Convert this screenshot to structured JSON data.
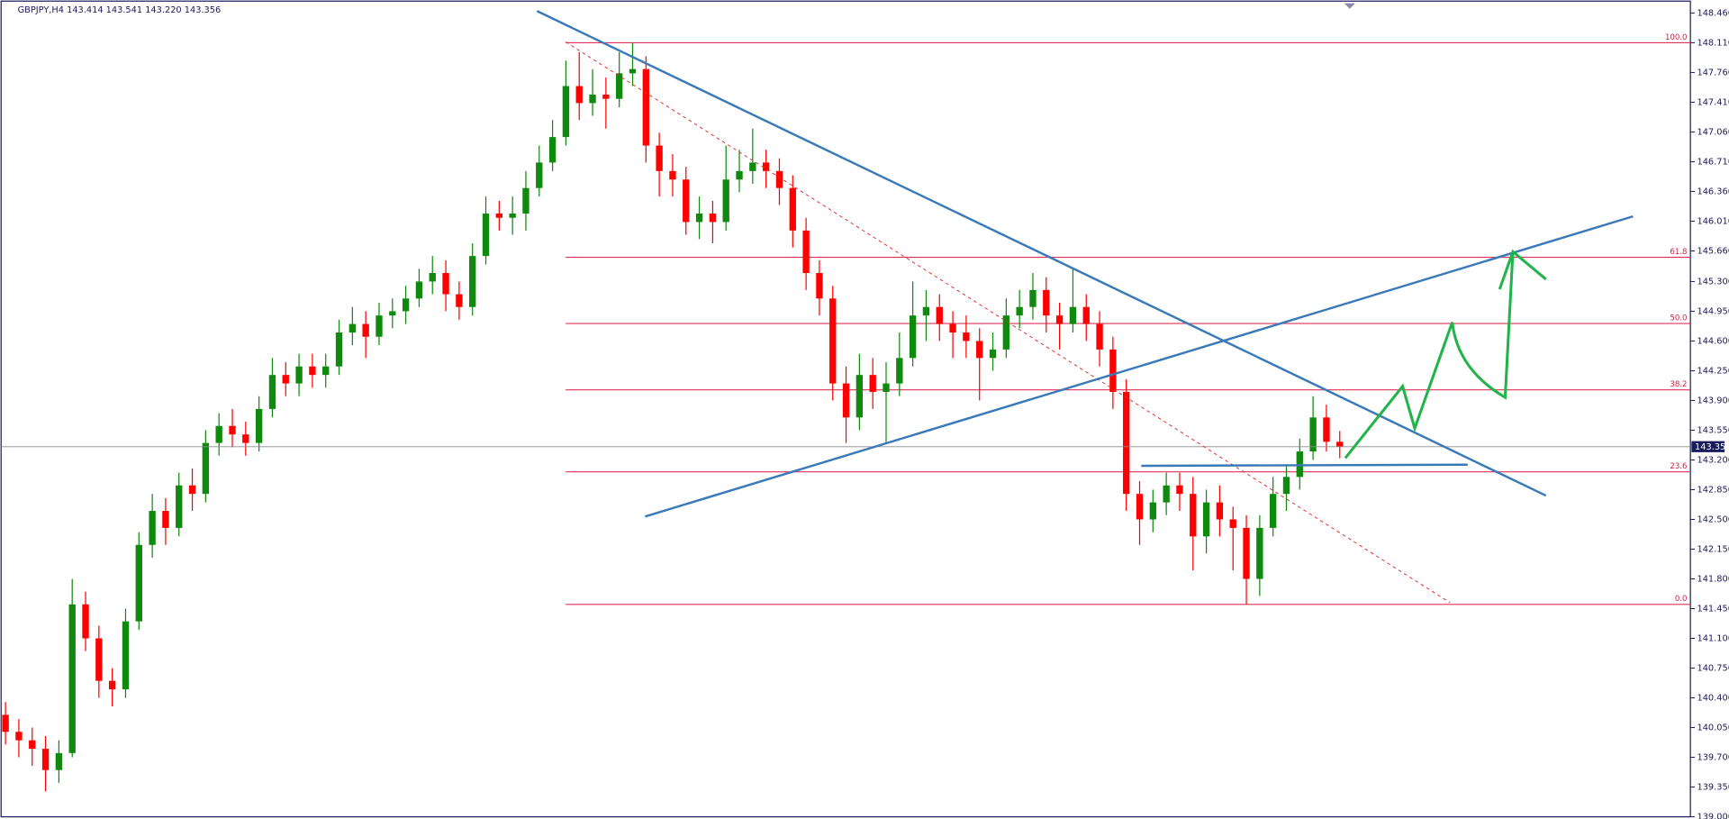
{
  "chart_data": {
    "type": "candlestick",
    "title": "GBPJPY,H4  143.414 143.541 143.220 143.356",
    "up_color": "#0f8a0f",
    "down_color": "#ff0000",
    "ylim": [
      139.0,
      148.6
    ],
    "yticks": [
      {
        "value": 148.46,
        "label": "148.460"
      },
      {
        "value": 148.11,
        "label": "148.110"
      },
      {
        "value": 147.76,
        "label": "147.760"
      },
      {
        "value": 147.41,
        "label": "147.410"
      },
      {
        "value": 147.06,
        "label": "147.060"
      },
      {
        "value": 146.71,
        "label": "146.710"
      },
      {
        "value": 146.36,
        "label": "146.360"
      },
      {
        "value": 146.01,
        "label": "146.010"
      },
      {
        "value": 145.66,
        "label": "145.660"
      },
      {
        "value": 145.3,
        "label": "145.300"
      },
      {
        "value": 144.95,
        "label": "144.950"
      },
      {
        "value": 144.6,
        "label": "144.600"
      },
      {
        "value": 144.25,
        "label": "144.250"
      },
      {
        "value": 143.9,
        "label": "143.900"
      },
      {
        "value": 143.55,
        "label": "143.550"
      },
      {
        "value": 143.2,
        "label": "143.200"
      },
      {
        "value": 142.85,
        "label": "142.850"
      },
      {
        "value": 142.5,
        "label": "142.500"
      },
      {
        "value": 142.15,
        "label": "142.150"
      },
      {
        "value": 141.8,
        "label": "141.800"
      },
      {
        "value": 141.45,
        "label": "141.450"
      },
      {
        "value": 141.1,
        "label": "141.100"
      },
      {
        "value": 140.75,
        "label": "140.750"
      },
      {
        "value": 140.4,
        "label": "140.400"
      },
      {
        "value": 140.05,
        "label": "140.050"
      },
      {
        "value": 139.7,
        "label": "139.700"
      },
      {
        "value": 139.35,
        "label": "139.350"
      },
      {
        "value": 139.0,
        "label": "139.000"
      }
    ],
    "fib_levels": [
      {
        "text": "100.0",
        "price": 148.11
      },
      {
        "text": "61.8",
        "price": 145.585
      },
      {
        "text": "50.0",
        "price": 144.805
      },
      {
        "text": "38.2",
        "price": 144.025
      },
      {
        "text": "23.6",
        "price": 143.06
      },
      {
        "text": "0.0",
        "price": 141.5
      }
    ],
    "open": [
      140.2,
      140.0,
      139.9,
      139.8,
      139.55,
      139.75,
      141.5,
      141.1,
      140.6,
      140.5,
      141.3,
      142.2,
      142.6,
      142.4,
      142.9,
      142.8,
      143.4,
      143.6,
      143.5,
      143.4,
      143.8,
      144.2,
      144.1,
      144.3,
      144.2,
      144.3,
      144.7,
      144.8,
      144.65,
      144.9,
      144.95,
      145.1,
      145.3,
      145.4,
      145.15,
      145.0,
      145.6,
      146.1,
      146.05,
      146.1,
      146.4,
      146.7,
      147.0,
      147.6,
      147.4,
      147.5,
      147.45,
      147.75,
      147.8,
      146.9,
      146.6,
      146.5,
      146.0,
      146.1,
      146.0,
      146.5,
      146.6,
      146.7,
      146.6,
      146.4,
      145.9,
      145.4,
      145.1,
      144.1,
      143.7,
      144.2,
      144.0,
      144.1,
      144.4,
      144.9,
      145.0,
      144.8,
      144.7,
      144.6,
      144.4,
      144.5,
      144.9,
      145.0,
      145.2,
      144.9,
      144.8,
      145.0,
      144.8,
      144.5,
      144.0,
      142.8,
      142.5,
      142.7,
      142.9,
      142.8,
      142.3,
      142.7,
      142.5,
      142.4,
      141.8,
      142.4,
      142.8,
      143.0,
      143.3,
      143.7,
      143.414
    ],
    "high": [
      140.35,
      140.15,
      140.05,
      139.95,
      139.9,
      141.8,
      141.65,
      141.25,
      140.75,
      141.45,
      142.35,
      142.8,
      142.75,
      143.05,
      143.1,
      143.55,
      143.75,
      143.8,
      143.65,
      143.95,
      144.4,
      144.35,
      144.45,
      144.45,
      144.45,
      144.85,
      145.0,
      144.95,
      145.05,
      145.1,
      145.25,
      145.45,
      145.6,
      145.55,
      145.3,
      145.75,
      146.3,
      146.25,
      146.3,
      146.6,
      146.9,
      147.2,
      147.9,
      148.0,
      147.8,
      147.7,
      148.0,
      148.11,
      147.95,
      147.05,
      146.8,
      146.65,
      146.3,
      146.25,
      146.9,
      146.85,
      147.1,
      146.85,
      146.75,
      146.55,
      146.05,
      145.55,
      145.25,
      144.3,
      144.45,
      144.4,
      144.35,
      144.7,
      145.3,
      145.2,
      145.15,
      144.95,
      144.9,
      144.75,
      144.7,
      145.1,
      145.2,
      145.4,
      145.35,
      145.05,
      145.45,
      145.15,
      144.95,
      144.65,
      144.15,
      142.95,
      142.85,
      143.05,
      143.05,
      143.0,
      142.85,
      142.9,
      142.65,
      142.55,
      142.55,
      143.0,
      143.15,
      143.45,
      143.95,
      143.85,
      143.541
    ],
    "low": [
      139.85,
      139.7,
      139.6,
      139.3,
      139.4,
      139.7,
      140.95,
      140.4,
      140.3,
      140.4,
      141.2,
      142.05,
      142.2,
      142.3,
      142.6,
      142.7,
      143.25,
      143.35,
      143.25,
      143.3,
      143.7,
      143.95,
      143.95,
      144.05,
      144.05,
      144.2,
      144.55,
      144.4,
      144.55,
      144.75,
      144.8,
      145.0,
      145.15,
      144.95,
      144.85,
      144.9,
      145.5,
      145.9,
      145.85,
      145.9,
      146.3,
      146.6,
      146.9,
      147.2,
      147.25,
      147.1,
      147.35,
      147.6,
      146.7,
      146.3,
      146.3,
      145.85,
      145.8,
      145.75,
      145.9,
      146.35,
      146.45,
      146.4,
      146.2,
      145.7,
      145.2,
      144.9,
      143.9,
      143.4,
      143.55,
      143.8,
      143.4,
      143.95,
      144.3,
      144.6,
      144.6,
      144.4,
      144.4,
      143.9,
      144.25,
      144.4,
      144.75,
      144.85,
      144.7,
      144.5,
      144.7,
      144.6,
      144.3,
      143.8,
      142.6,
      142.2,
      142.35,
      142.55,
      142.6,
      141.9,
      142.1,
      142.3,
      141.9,
      141.5,
      141.6,
      142.3,
      142.6,
      142.85,
      143.2,
      143.3,
      143.22
    ],
    "close": [
      140.0,
      139.9,
      139.8,
      139.55,
      139.75,
      141.5,
      141.1,
      140.6,
      140.5,
      141.3,
      142.2,
      142.6,
      142.4,
      142.9,
      142.8,
      143.4,
      143.6,
      143.5,
      143.4,
      143.8,
      144.2,
      144.1,
      144.3,
      144.2,
      144.3,
      144.7,
      144.8,
      144.65,
      144.9,
      144.95,
      145.1,
      145.3,
      145.4,
      145.15,
      145.0,
      145.6,
      146.1,
      146.05,
      146.1,
      146.4,
      146.7,
      147.0,
      147.6,
      147.4,
      147.5,
      147.45,
      147.75,
      147.8,
      146.9,
      146.6,
      146.5,
      146.0,
      146.1,
      146.0,
      146.5,
      146.6,
      146.7,
      146.6,
      146.4,
      145.9,
      145.4,
      145.1,
      144.1,
      143.7,
      144.2,
      144.0,
      144.1,
      144.4,
      144.9,
      145.0,
      144.8,
      144.7,
      144.6,
      144.4,
      144.5,
      144.9,
      145.0,
      145.2,
      144.9,
      144.8,
      145.0,
      144.8,
      144.5,
      144.0,
      142.8,
      142.5,
      142.7,
      142.9,
      142.8,
      142.3,
      142.7,
      142.5,
      142.4,
      141.8,
      142.4,
      142.8,
      143.0,
      143.3,
      143.7,
      143.414,
      143.356
    ]
  }
}
